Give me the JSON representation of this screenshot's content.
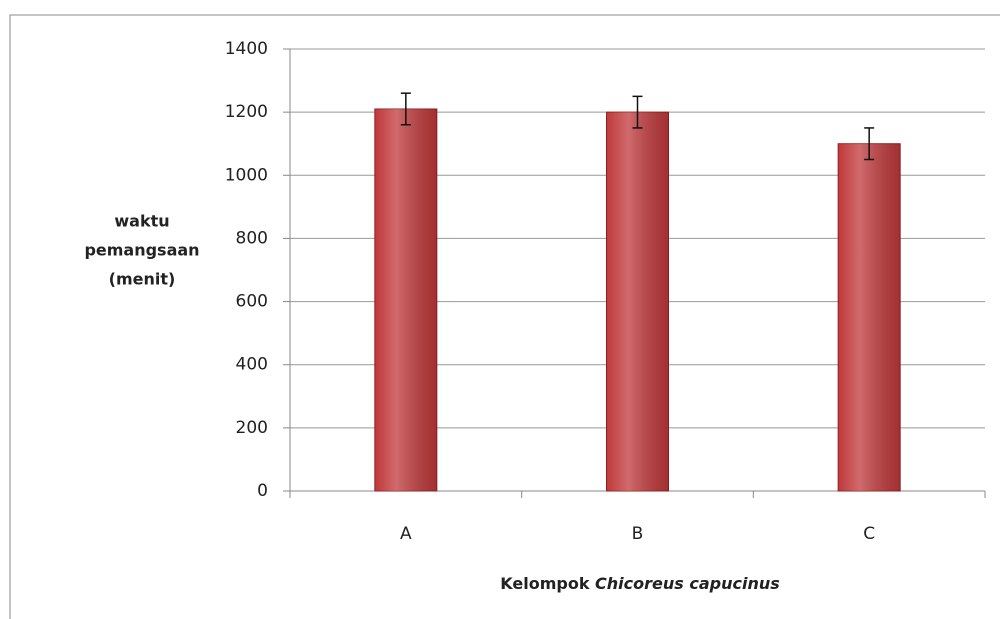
{
  "chart_data": {
    "type": "bar",
    "categories": [
      "A",
      "B",
      "C"
    ],
    "values": [
      1210,
      1200,
      1100
    ],
    "errors": [
      50,
      50,
      50
    ],
    "color": "#c0393b",
    "ylim": [
      0,
      1400
    ],
    "yticks": [
      0,
      200,
      400,
      600,
      800,
      1000,
      1200,
      1400
    ],
    "grid": true,
    "ylabel": [
      "waktu",
      "pemangsaan",
      "(menit)"
    ],
    "xlabel": [
      "Kelompok",
      "Chicoreus capucinus"
    ]
  }
}
